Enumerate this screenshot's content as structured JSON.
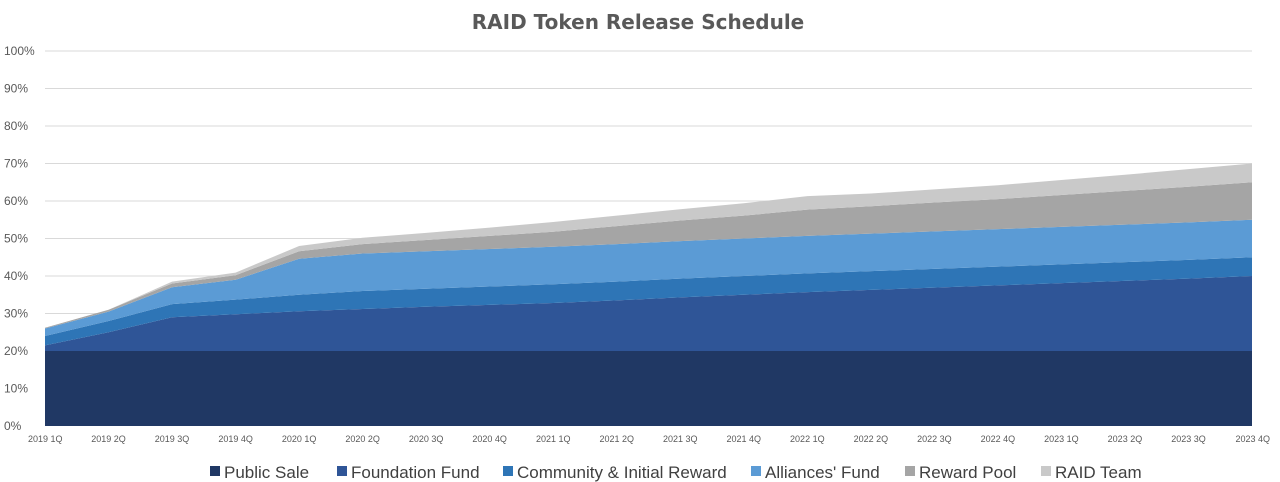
{
  "chart_data": {
    "type": "area",
    "stacked": true,
    "title": "RAID Token Release Schedule",
    "xlabel": "",
    "ylabel": "",
    "ylim": [
      0,
      100
    ],
    "y_unit": "%",
    "y_ticks": [
      "0%",
      "10%",
      "20%",
      "30%",
      "40%",
      "50%",
      "60%",
      "70%",
      "80%",
      "90%",
      "100%"
    ],
    "grid": true,
    "legend_position": "bottom",
    "categories": [
      "2019 1Q",
      "2019 2Q",
      "2019 3Q",
      "2019 4Q",
      "2020 1Q",
      "2020 2Q",
      "2020 3Q",
      "2020 4Q",
      "2021 1Q",
      "2021 2Q",
      "2021 3Q",
      "2021 4Q",
      "2022 1Q",
      "2022 2Q",
      "2022 3Q",
      "2022 4Q",
      "2023 1Q",
      "2023 2Q",
      "2023 3Q",
      "2023 4Q"
    ],
    "series": [
      {
        "name": "Public Sale",
        "color": "#203864",
        "values": [
          20,
          20,
          20,
          20,
          20,
          20,
          20,
          20,
          20,
          20,
          20,
          20,
          20,
          20,
          20,
          20,
          20,
          20,
          20,
          20
        ]
      },
      {
        "name": "Foundation Fund",
        "color": "#2f5597",
        "values": [
          1.5,
          5,
          9,
          9.8,
          10.6,
          11.2,
          11.8,
          12.3,
          12.8,
          13.5,
          14.3,
          15,
          15.7,
          16.3,
          16.9,
          17.5,
          18.1,
          18.7,
          19.3,
          20
        ]
      },
      {
        "name": "Community & Initial Reward",
        "color": "#2e75b6",
        "values": [
          2.5,
          3,
          3.5,
          3.9,
          4.4,
          4.8,
          4.8,
          4.9,
          5,
          5,
          5,
          5,
          5,
          5,
          5,
          5,
          5,
          5,
          5,
          5
        ]
      },
      {
        "name": "Alliances' Fund",
        "color": "#5b9bd5",
        "values": [
          2,
          2.5,
          4.5,
          5.3,
          9.6,
          10,
          10,
          10,
          10,
          10,
          10,
          10,
          10,
          10,
          10,
          10,
          10,
          10,
          10,
          10
        ]
      },
      {
        "name": "Reward Pool",
        "color": "#a5a5a5",
        "values": [
          0.2,
          0.5,
          1,
          1.2,
          2,
          2.5,
          3,
          3.5,
          4,
          4.8,
          5.5,
          6.1,
          7,
          7.3,
          7.7,
          8,
          8.5,
          9,
          9.5,
          10
        ]
      },
      {
        "name": "RAID Team",
        "color": "#c9c9c9",
        "values": [
          0,
          0,
          0.5,
          0.7,
          1.4,
          1.7,
          1.9,
          2.2,
          2.6,
          2.8,
          3,
          3.3,
          3.6,
          3.4,
          3.5,
          3.7,
          4,
          4.3,
          4.7,
          5
        ]
      }
    ]
  }
}
